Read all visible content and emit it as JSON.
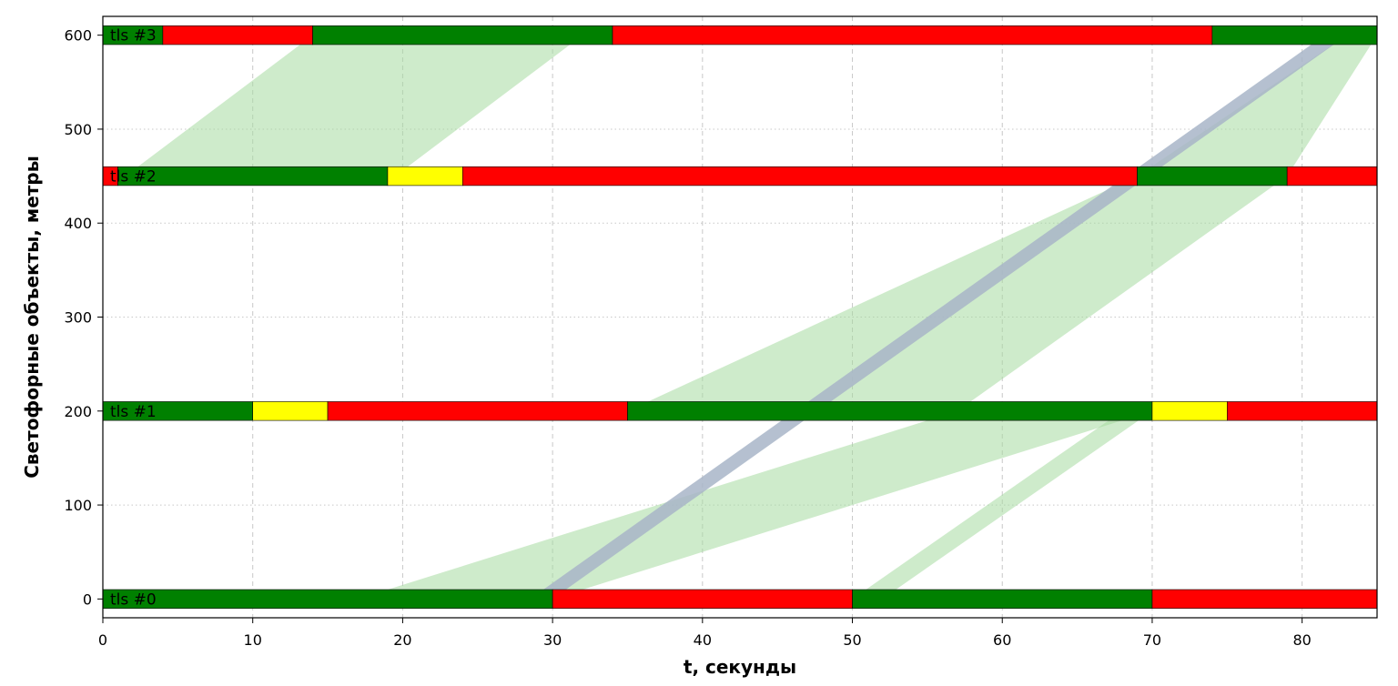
{
  "chart_data": {
    "type": "timeline",
    "title": "",
    "xlabel": "t, секунды",
    "ylabel": "Светофорные объекты, метры",
    "xlim": [
      0,
      85
    ],
    "ylim": [
      -20,
      620
    ],
    "xticks": [
      0,
      10,
      20,
      30,
      40,
      50,
      60,
      70,
      80
    ],
    "yticks": [
      0,
      100,
      200,
      300,
      400,
      500,
      600
    ],
    "grid": {
      "x": "dashed",
      "y": "dotted"
    },
    "lights": [
      {
        "name": "tls #0",
        "position": 0,
        "phases": [
          {
            "start": 0,
            "end": 30,
            "color": "green"
          },
          {
            "start": 30,
            "end": 50,
            "color": "red"
          },
          {
            "start": 50,
            "end": 70,
            "color": "green"
          },
          {
            "start": 70,
            "end": 85,
            "color": "red"
          }
        ]
      },
      {
        "name": "tls #1",
        "position": 200,
        "phases": [
          {
            "start": 0,
            "end": 10,
            "color": "green"
          },
          {
            "start": 10,
            "end": 15,
            "color": "yellow"
          },
          {
            "start": 15,
            "end": 35,
            "color": "red"
          },
          {
            "start": 35,
            "end": 70,
            "color": "green"
          },
          {
            "start": 70,
            "end": 75,
            "color": "yellow"
          },
          {
            "start": 75,
            "end": 85,
            "color": "red"
          }
        ]
      },
      {
        "name": "tls #2",
        "position": 450,
        "phases": [
          {
            "start": 0,
            "end": 1,
            "color": "red"
          },
          {
            "start": 1,
            "end": 19,
            "color": "green"
          },
          {
            "start": 19,
            "end": 24,
            "color": "yellow"
          },
          {
            "start": 24,
            "end": 69,
            "color": "red"
          },
          {
            "start": 69,
            "end": 79,
            "color": "green"
          },
          {
            "start": 79,
            "end": 85,
            "color": "red"
          }
        ]
      },
      {
        "name": "tls #3",
        "position": 600,
        "phases": [
          {
            "start": 0,
            "end": 4,
            "color": "green"
          },
          {
            "start": 4,
            "end": 14,
            "color": "red"
          },
          {
            "start": 14,
            "end": 34,
            "color": "green"
          },
          {
            "start": 34,
            "end": 74,
            "color": "red"
          },
          {
            "start": 74,
            "end": 85,
            "color": "green"
          }
        ]
      }
    ],
    "green_waves": [
      {
        "points": [
          [
            17,
            0
          ],
          [
            30,
            0
          ],
          [
            70,
            200
          ],
          [
            57,
            200
          ]
        ]
      },
      {
        "points": [
          [
            50,
            0
          ],
          [
            52,
            0
          ],
          [
            70,
            200
          ],
          [
            68,
            200
          ]
        ]
      },
      {
        "points": [
          [
            35,
            200
          ],
          [
            57,
            200
          ],
          [
            79,
            450
          ],
          [
            69,
            450
          ]
        ]
      },
      {
        "points": [
          [
            1.5,
            450
          ],
          [
            19.5,
            450
          ],
          [
            32,
            600
          ],
          [
            14,
            600
          ]
        ]
      },
      {
        "points": [
          [
            69,
            450
          ],
          [
            79,
            450
          ],
          [
            85,
            600
          ],
          [
            83,
            600
          ]
        ]
      }
    ],
    "speed_band": {
      "points": [
        [
          28.5,
          0
        ],
        [
          30,
          0
        ],
        [
          83,
          600
        ],
        [
          81.5,
          600
        ]
      ]
    },
    "colors": {
      "green": "#008000",
      "red": "#ff0000",
      "yellow": "#ffff00",
      "wave": "#a5dba0",
      "band": "#a8b5c8",
      "grid": "#c8c8c8"
    }
  }
}
